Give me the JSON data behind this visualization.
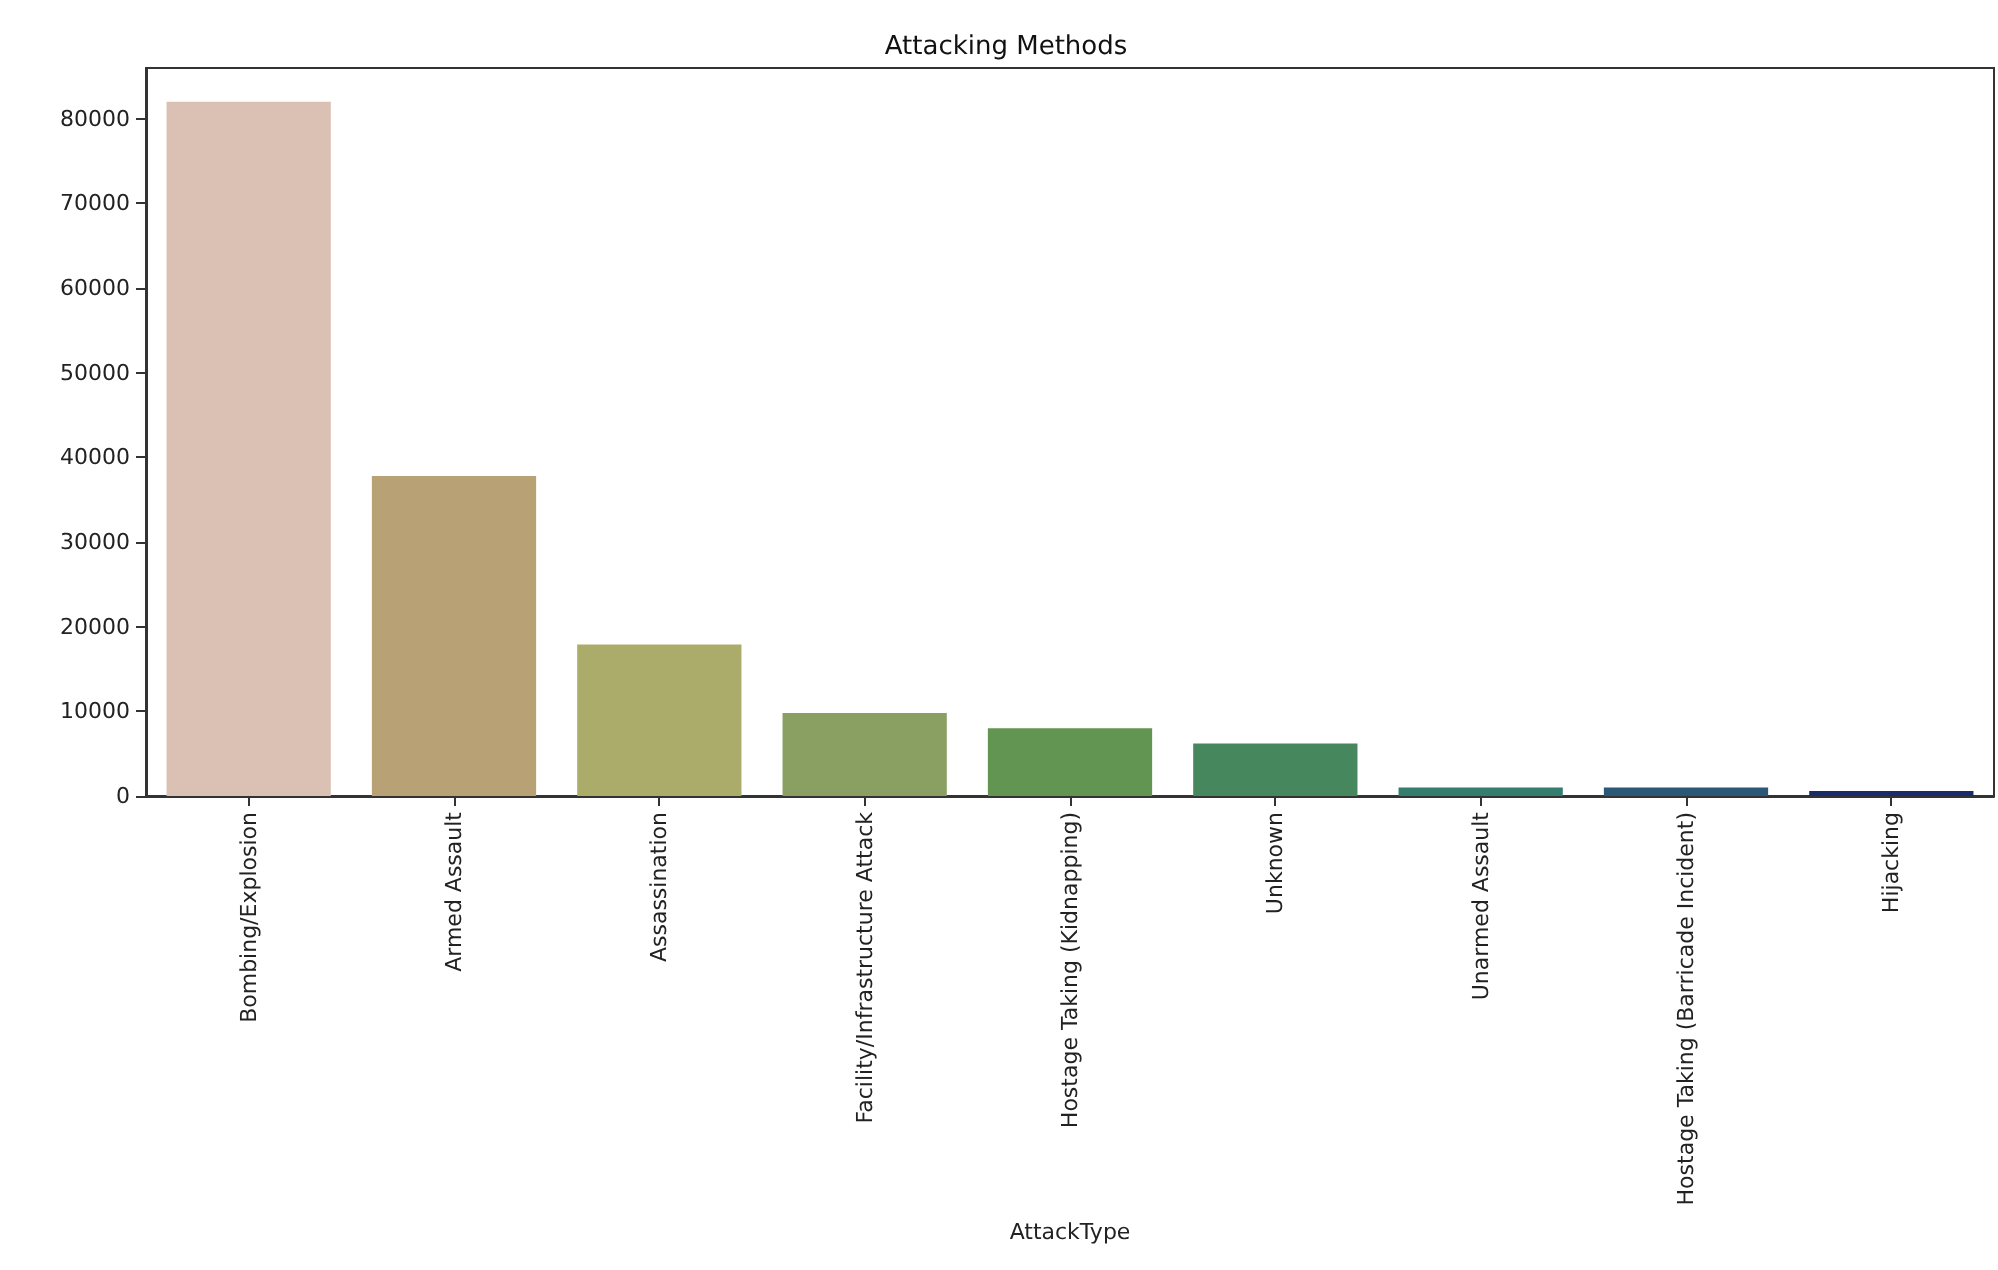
{
  "chart_data": {
    "type": "bar",
    "title": "Attacking Methods",
    "xlabel": "AttackType",
    "categories": [
      "Bombing/Explosion",
      "Armed Assault",
      "Assassination",
      "Facility/Infrastructure Attack",
      "Hostage Taking (Kidnapping)",
      "Unknown",
      "Unarmed Assault",
      "Hostage Taking (Barricade Incident)",
      "Hijacking"
    ],
    "values": [
      82000,
      37800,
      17900,
      9800,
      8000,
      6200,
      1000,
      1000,
      600
    ],
    "colors": [
      "#dbc0b4",
      "#b9a176",
      "#abab6a",
      "#8aa062",
      "#629552",
      "#47875e",
      "#357d6e",
      "#2a5876",
      "#1a2a6a"
    ],
    "ylim": [
      0,
      86000
    ],
    "yticks": [
      0,
      10000,
      20000,
      30000,
      40000,
      50000,
      60000,
      70000,
      80000
    ],
    "grid": false
  }
}
